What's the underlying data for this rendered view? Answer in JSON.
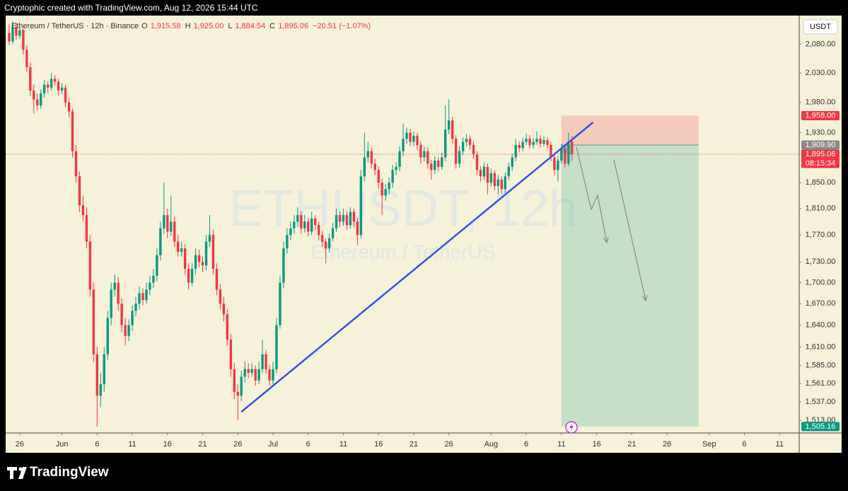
{
  "chart_data": {
    "type": "candlestick",
    "source_note": "Cryptophic created with TradingView.com, Aug 12, 2026 15:44 UTC",
    "symbol_title": "Ethereum / TetherUS · 12h · Binance",
    "legend_items": [
      {
        "key": "O",
        "value": "1,915.58"
      },
      {
        "key": "H",
        "value": "1,925.00"
      },
      {
        "key": "L",
        "value": "1,884.54"
      },
      {
        "key": "C",
        "value": "1,895.06"
      }
    ],
    "change": "−20.51 (−1.07%)",
    "watermark": "ETHUSDT, 12h",
    "watermark_sub": "Ethereum / TetherUS",
    "currency": "USDT",
    "brand": "TradingView",
    "log_scale": true,
    "up_color": "#089981",
    "down_color": "#f23645",
    "xlim": [
      "2026-05-24T00:00",
      "2026-09-13T19:00"
    ],
    "ylim": [
      1497,
      2131
    ],
    "yticks": [
      {
        "value": 2080,
        "label": "2,080.00"
      },
      {
        "value": 2030,
        "label": "2,030.00"
      },
      {
        "value": 1980,
        "label": "1,980.00"
      },
      {
        "value": 1930,
        "label": "1,930.00"
      },
      {
        "value": 1850,
        "label": "1,850.00"
      },
      {
        "value": 1810,
        "label": "1,810.00"
      },
      {
        "value": 1770,
        "label": "1,770.00"
      },
      {
        "value": 1730,
        "label": "1,730.00"
      },
      {
        "value": 1700,
        "label": "1,700.00"
      },
      {
        "value": 1670,
        "label": "1,670.00"
      },
      {
        "value": 1640,
        "label": "1,640.00"
      },
      {
        "value": 1610,
        "label": "1,610.00"
      },
      {
        "value": 1585,
        "label": "1,585.00"
      },
      {
        "value": 1561,
        "label": "1,561.00"
      },
      {
        "value": 1537,
        "label": "1,537.00"
      },
      {
        "value": 1513,
        "label": "1,513.00"
      }
    ],
    "xticks": [
      {
        "value": "2026-05-26",
        "label": "26"
      },
      {
        "value": "2026-06-01",
        "label": "Jun"
      },
      {
        "value": "2026-06-06",
        "label": "6"
      },
      {
        "value": "2026-06-11",
        "label": "11"
      },
      {
        "value": "2026-06-16",
        "label": "16"
      },
      {
        "value": "2026-06-21",
        "label": "21"
      },
      {
        "value": "2026-06-26",
        "label": "26"
      },
      {
        "value": "2026-07-01",
        "label": "Jul"
      },
      {
        "value": "2026-07-06",
        "label": "6"
      },
      {
        "value": "2026-07-11",
        "label": "11"
      },
      {
        "value": "2026-07-16",
        "label": "16"
      },
      {
        "value": "2026-07-21",
        "label": "21"
      },
      {
        "value": "2026-07-26",
        "label": "26"
      },
      {
        "value": "2026-08-01",
        "label": "Aug"
      },
      {
        "value": "2026-08-06",
        "label": "6"
      },
      {
        "value": "2026-08-11",
        "label": "11"
      },
      {
        "value": "2026-08-16",
        "label": "16"
      },
      {
        "value": "2026-08-21",
        "label": "21"
      },
      {
        "value": "2026-08-26",
        "label": "26"
      },
      {
        "value": "2026-09-01",
        "label": "Sep"
      },
      {
        "value": "2026-09-06",
        "label": "6"
      },
      {
        "value": "2026-09-11",
        "label": "11"
      }
    ],
    "x": [
      "2026-05-24T12:00",
      "2026-05-25T00:00",
      "2026-05-25T12:00",
      "2026-05-26T00:00",
      "2026-05-26T12:00",
      "2026-05-27T00:00",
      "2026-05-27T12:00",
      "2026-05-28T00:00",
      "2026-05-28T12:00",
      "2026-05-29T00:00",
      "2026-05-29T12:00",
      "2026-05-30T00:00",
      "2026-05-30T12:00",
      "2026-05-31T00:00",
      "2026-05-31T12:00",
      "2026-06-01T00:00",
      "2026-06-01T12:00",
      "2026-06-02T00:00",
      "2026-06-02T12:00",
      "2026-06-03T00:00",
      "2026-06-03T12:00",
      "2026-06-04T00:00",
      "2026-06-04T12:00",
      "2026-06-05T00:00",
      "2026-06-05T12:00",
      "2026-06-06T00:00",
      "2026-06-06T12:00",
      "2026-06-07T00:00",
      "2026-06-07T12:00",
      "2026-06-08T00:00",
      "2026-06-08T12:00",
      "2026-06-09T00:00",
      "2026-06-09T12:00",
      "2026-06-10T00:00",
      "2026-06-10T12:00",
      "2026-06-11T00:00",
      "2026-06-11T12:00",
      "2026-06-12T00:00",
      "2026-06-12T12:00",
      "2026-06-13T00:00",
      "2026-06-13T12:00",
      "2026-06-14T00:00",
      "2026-06-14T12:00",
      "2026-06-15T00:00",
      "2026-06-15T12:00",
      "2026-06-16T00:00",
      "2026-06-16T12:00",
      "2026-06-17T00:00",
      "2026-06-17T12:00",
      "2026-06-18T00:00",
      "2026-06-18T12:00",
      "2026-06-19T00:00",
      "2026-06-19T12:00",
      "2026-06-20T00:00",
      "2026-06-20T12:00",
      "2026-06-21T00:00",
      "2026-06-21T12:00",
      "2026-06-22T00:00",
      "2026-06-22T12:00",
      "2026-06-23T00:00",
      "2026-06-23T12:00",
      "2026-06-24T00:00",
      "2026-06-24T12:00",
      "2026-06-25T00:00",
      "2026-06-25T12:00",
      "2026-06-26T00:00",
      "2026-06-26T12:00",
      "2026-06-27T00:00",
      "2026-06-27T12:00",
      "2026-06-28T00:00",
      "2026-06-28T12:00",
      "2026-06-29T00:00",
      "2026-06-29T12:00",
      "2026-06-30T00:00",
      "2026-06-30T12:00",
      "2026-07-01T00:00",
      "2026-07-01T12:00",
      "2026-07-02T00:00",
      "2026-07-02T12:00",
      "2026-07-03T00:00",
      "2026-07-03T12:00",
      "2026-07-04T00:00",
      "2026-07-04T12:00",
      "2026-07-05T00:00",
      "2026-07-05T12:00",
      "2026-07-06T00:00",
      "2026-07-06T12:00",
      "2026-07-07T00:00",
      "2026-07-07T12:00",
      "2026-07-08T00:00",
      "2026-07-08T12:00",
      "2026-07-09T00:00",
      "2026-07-09T12:00",
      "2026-07-10T00:00",
      "2026-07-10T12:00",
      "2026-07-11T00:00",
      "2026-07-11T12:00",
      "2026-07-12T00:00",
      "2026-07-12T12:00",
      "2026-07-13T00:00",
      "2026-07-13T12:00",
      "2026-07-14T00:00",
      "2026-07-14T12:00",
      "2026-07-15T00:00",
      "2026-07-15T12:00",
      "2026-07-16T00:00",
      "2026-07-16T12:00",
      "2026-07-17T00:00",
      "2026-07-17T12:00",
      "2026-07-18T00:00",
      "2026-07-18T12:00",
      "2026-07-19T00:00",
      "2026-07-19T12:00",
      "2026-07-20T00:00",
      "2026-07-20T12:00",
      "2026-07-21T00:00",
      "2026-07-21T12:00",
      "2026-07-22T00:00",
      "2026-07-22T12:00",
      "2026-07-23T00:00",
      "2026-07-23T12:00",
      "2026-07-24T00:00",
      "2026-07-24T12:00",
      "2026-07-25T00:00",
      "2026-07-25T12:00",
      "2026-07-26T00:00",
      "2026-07-26T12:00",
      "2026-07-27T00:00",
      "2026-07-27T12:00",
      "2026-07-28T00:00",
      "2026-07-28T12:00",
      "2026-07-29T00:00",
      "2026-07-29T12:00",
      "2026-07-30T00:00",
      "2026-07-30T12:00",
      "2026-07-31T00:00",
      "2026-07-31T12:00",
      "2026-08-01T00:00",
      "2026-08-01T12:00",
      "2026-08-02T00:00",
      "2026-08-02T12:00",
      "2026-08-03T00:00",
      "2026-08-03T12:00",
      "2026-08-04T00:00",
      "2026-08-04T12:00",
      "2026-08-05T00:00",
      "2026-08-05T12:00",
      "2026-08-06T00:00",
      "2026-08-06T12:00",
      "2026-08-07T00:00",
      "2026-08-07T12:00",
      "2026-08-08T00:00",
      "2026-08-08T12:00",
      "2026-08-09T00:00",
      "2026-08-09T12:00",
      "2026-08-10T00:00",
      "2026-08-10T12:00",
      "2026-08-11T00:00",
      "2026-08-11T12:00",
      "2026-08-12T00:00",
      "2026-08-12T12:00"
    ],
    "ohlc": [
      [
        2100,
        2115,
        2078,
        2085
      ],
      [
        2085,
        2120,
        2080,
        2110
      ],
      [
        2110,
        2118,
        2088,
        2095
      ],
      [
        2095,
        2112,
        2090,
        2105
      ],
      [
        2105,
        2108,
        2062,
        2070
      ],
      [
        2070,
        2078,
        2032,
        2040
      ],
      [
        2040,
        2048,
        1990,
        2000
      ],
      [
        2000,
        2010,
        1962,
        1985
      ],
      [
        1985,
        1995,
        1968,
        1975
      ],
      [
        1975,
        2002,
        1970,
        1995
      ],
      [
        1995,
        2018,
        1988,
        2010
      ],
      [
        2010,
        2016,
        1996,
        2005
      ],
      [
        2005,
        2030,
        2000,
        2020
      ],
      [
        2020,
        2026,
        2008,
        2015
      ],
      [
        2015,
        2020,
        1992,
        2000
      ],
      [
        2000,
        2012,
        1994,
        2005
      ],
      [
        2005,
        2010,
        1972,
        1980
      ],
      [
        1980,
        1988,
        1955,
        1965
      ],
      [
        1965,
        1970,
        1890,
        1900
      ],
      [
        1900,
        1910,
        1850,
        1860
      ],
      [
        1860,
        1868,
        1805,
        1815
      ],
      [
        1815,
        1830,
        1790,
        1800
      ],
      [
        1800,
        1812,
        1750,
        1760
      ],
      [
        1760,
        1770,
        1680,
        1690
      ],
      [
        1690,
        1700,
        1590,
        1600
      ],
      [
        1600,
        1610,
        1505,
        1545
      ],
      [
        1545,
        1575,
        1530,
        1560
      ],
      [
        1560,
        1610,
        1550,
        1600
      ],
      [
        1600,
        1660,
        1592,
        1650
      ],
      [
        1650,
        1700,
        1640,
        1690
      ],
      [
        1690,
        1712,
        1680,
        1700
      ],
      [
        1700,
        1708,
        1660,
        1670
      ],
      [
        1670,
        1678,
        1630,
        1640
      ],
      [
        1640,
        1650,
        1612,
        1625
      ],
      [
        1625,
        1648,
        1618,
        1640
      ],
      [
        1640,
        1668,
        1632,
        1660
      ],
      [
        1660,
        1680,
        1652,
        1670
      ],
      [
        1670,
        1695,
        1662,
        1685
      ],
      [
        1685,
        1692,
        1668,
        1675
      ],
      [
        1675,
        1700,
        1670,
        1690
      ],
      [
        1690,
        1710,
        1682,
        1700
      ],
      [
        1700,
        1720,
        1692,
        1710
      ],
      [
        1710,
        1750,
        1702,
        1740
      ],
      [
        1740,
        1790,
        1732,
        1780
      ],
      [
        1780,
        1850,
        1772,
        1800
      ],
      [
        1800,
        1810,
        1765,
        1775
      ],
      [
        1775,
        1830,
        1768,
        1790
      ],
      [
        1790,
        1798,
        1752,
        1760
      ],
      [
        1760,
        1770,
        1738,
        1745
      ],
      [
        1745,
        1760,
        1738,
        1750
      ],
      [
        1750,
        1756,
        1712,
        1720
      ],
      [
        1720,
        1728,
        1690,
        1700
      ],
      [
        1700,
        1728,
        1695,
        1720
      ],
      [
        1720,
        1750,
        1712,
        1740
      ],
      [
        1740,
        1748,
        1722,
        1730
      ],
      [
        1730,
        1738,
        1715,
        1725
      ],
      [
        1725,
        1770,
        1718,
        1760
      ],
      [
        1760,
        1800,
        1752,
        1770
      ],
      [
        1770,
        1778,
        1712,
        1720
      ],
      [
        1720,
        1728,
        1682,
        1690
      ],
      [
        1690,
        1698,
        1662,
        1670
      ],
      [
        1670,
        1680,
        1645,
        1655
      ],
      [
        1655,
        1662,
        1612,
        1620
      ],
      [
        1620,
        1628,
        1570,
        1580
      ],
      [
        1580,
        1588,
        1540,
        1550
      ],
      [
        1550,
        1560,
        1513,
        1545
      ],
      [
        1545,
        1578,
        1538,
        1570
      ],
      [
        1570,
        1590,
        1562,
        1580
      ],
      [
        1580,
        1588,
        1568,
        1575
      ],
      [
        1575,
        1588,
        1570,
        1580
      ],
      [
        1580,
        1585,
        1558,
        1565
      ],
      [
        1565,
        1590,
        1560,
        1580
      ],
      [
        1580,
        1620,
        1575,
        1600
      ],
      [
        1600,
        1606,
        1574,
        1580
      ],
      [
        1580,
        1586,
        1558,
        1565
      ],
      [
        1565,
        1590,
        1560,
        1580
      ],
      [
        1580,
        1650,
        1575,
        1640
      ],
      [
        1640,
        1710,
        1635,
        1700
      ],
      [
        1700,
        1760,
        1692,
        1750
      ],
      [
        1750,
        1780,
        1742,
        1770
      ],
      [
        1770,
        1790,
        1762,
        1780
      ],
      [
        1780,
        1800,
        1772,
        1790
      ],
      [
        1790,
        1812,
        1782,
        1800
      ],
      [
        1800,
        1806,
        1772,
        1780
      ],
      [
        1780,
        1800,
        1774,
        1790
      ],
      [
        1790,
        1796,
        1768,
        1775
      ],
      [
        1775,
        1805,
        1770,
        1795
      ],
      [
        1795,
        1800,
        1778,
        1785
      ],
      [
        1785,
        1790,
        1762,
        1770
      ],
      [
        1770,
        1776,
        1752,
        1760
      ],
      [
        1760,
        1765,
        1728,
        1750
      ],
      [
        1750,
        1772,
        1744,
        1765
      ],
      [
        1765,
        1788,
        1760,
        1780
      ],
      [
        1780,
        1810,
        1775,
        1800
      ],
      [
        1800,
        1806,
        1782,
        1790
      ],
      [
        1790,
        1810,
        1784,
        1800
      ],
      [
        1800,
        1806,
        1778,
        1785
      ],
      [
        1785,
        1812,
        1780,
        1805
      ],
      [
        1805,
        1810,
        1782,
        1790
      ],
      [
        1790,
        1796,
        1755,
        1770
      ],
      [
        1770,
        1870,
        1765,
        1860
      ],
      [
        1860,
        1930,
        1852,
        1890
      ],
      [
        1890,
        1915,
        1882,
        1900
      ],
      [
        1900,
        1906,
        1872,
        1880
      ],
      [
        1880,
        1888,
        1862,
        1870
      ],
      [
        1870,
        1876,
        1840,
        1850
      ],
      [
        1850,
        1856,
        1800,
        1830
      ],
      [
        1830,
        1848,
        1822,
        1840
      ],
      [
        1840,
        1858,
        1832,
        1850
      ],
      [
        1850,
        1878,
        1842,
        1870
      ],
      [
        1870,
        1882,
        1862,
        1875
      ],
      [
        1875,
        1908,
        1868,
        1900
      ],
      [
        1900,
        1945,
        1892,
        1920
      ],
      [
        1920,
        1938,
        1912,
        1930
      ],
      [
        1930,
        1936,
        1908,
        1915
      ],
      [
        1915,
        1932,
        1908,
        1925
      ],
      [
        1925,
        1930,
        1902,
        1910
      ],
      [
        1910,
        1916,
        1880,
        1890
      ],
      [
        1890,
        1908,
        1884,
        1900
      ],
      [
        1900,
        1906,
        1872,
        1880
      ],
      [
        1880,
        1886,
        1855,
        1870
      ],
      [
        1870,
        1892,
        1864,
        1885
      ],
      [
        1885,
        1890,
        1868,
        1875
      ],
      [
        1875,
        1898,
        1870,
        1890
      ],
      [
        1890,
        1975,
        1884,
        1935
      ],
      [
        1935,
        1985,
        1928,
        1950
      ],
      [
        1950,
        1956,
        1912,
        1920
      ],
      [
        1920,
        1926,
        1872,
        1880
      ],
      [
        1880,
        1908,
        1874,
        1900
      ],
      [
        1900,
        1922,
        1894,
        1915
      ],
      [
        1915,
        1928,
        1908,
        1920
      ],
      [
        1920,
        1926,
        1902,
        1910
      ],
      [
        1910,
        1916,
        1888,
        1895
      ],
      [
        1895,
        1900,
        1862,
        1870
      ],
      [
        1870,
        1876,
        1852,
        1860
      ],
      [
        1860,
        1882,
        1854,
        1875
      ],
      [
        1875,
        1880,
        1832,
        1850
      ],
      [
        1850,
        1872,
        1844,
        1865
      ],
      [
        1865,
        1870,
        1838,
        1845
      ],
      [
        1845,
        1862,
        1832,
        1855
      ],
      [
        1855,
        1860,
        1833,
        1840
      ],
      [
        1840,
        1866,
        1834,
        1860
      ],
      [
        1860,
        1882,
        1854,
        1875
      ],
      [
        1875,
        1896,
        1868,
        1890
      ],
      [
        1890,
        1920,
        1884,
        1910
      ],
      [
        1910,
        1916,
        1898,
        1905
      ],
      [
        1905,
        1922,
        1900,
        1915
      ],
      [
        1915,
        1928,
        1910,
        1920
      ],
      [
        1920,
        1926,
        1904,
        1910
      ],
      [
        1910,
        1922,
        1904,
        1915
      ],
      [
        1915,
        1932,
        1910,
        1920
      ],
      [
        1920,
        1925,
        1906,
        1912
      ],
      [
        1912,
        1924,
        1908,
        1918
      ],
      [
        1918,
        1922,
        1904,
        1910
      ],
      [
        1910,
        1915,
        1884,
        1890
      ],
      [
        1890,
        1895,
        1862,
        1870
      ],
      [
        1870,
        1892,
        1852,
        1885
      ],
      [
        1885,
        1912,
        1880,
        1905
      ],
      [
        1905,
        1910,
        1874,
        1880
      ],
      [
        1880,
        1930,
        1876,
        1915.58
      ],
      [
        1915.58,
        1925,
        1884.54,
        1895.06
      ]
    ],
    "last_price_label": "1,895.06",
    "countdown": "08:15:34",
    "trendline": {
      "x": [
        "2026-06-26T12:00",
        "2026-08-15T12:00"
      ],
      "values": [
        1524,
        1947
      ],
      "color": "#3355e6"
    },
    "position": {
      "start": "2026-08-11T00:00",
      "end": "2026-08-30T12:00",
      "entry": 1909.9,
      "stop": 1958.0,
      "target": 1505.16,
      "value_labels": {
        "entry": "1,909.90",
        "stop": "1,958.00",
        "target": "1,505.16"
      }
    }
  }
}
